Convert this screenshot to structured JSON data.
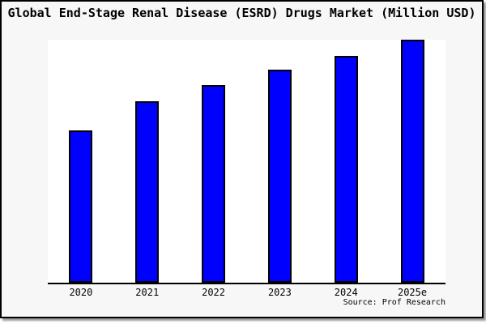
{
  "frame": {
    "background": "#f7f7f7",
    "border_color": "#000000",
    "plot_background": "#ffffff",
    "shadow_color": "#9a9a9a"
  },
  "chart_data": {
    "type": "bar",
    "title": "Global End-Stage Renal Disease (ESRD) Drugs Market (Million USD)",
    "categories": [
      "2020",
      "2021",
      "2022",
      "2023",
      "2024",
      "2025e"
    ],
    "values": [
      62.7,
      74.8,
      81.3,
      87.5,
      93.3,
      100
    ],
    "values_note": "relative bar heights as % of tallest bar; no y-axis scale, tick labels or gridlines are shown in the chart",
    "xlabel": "",
    "ylabel": "",
    "legend": null,
    "grid": false,
    "bar_fill": "#0000ff",
    "bar_border": "#000000",
    "axis_color": "#000000",
    "source_note": "Source: Prof Research"
  }
}
